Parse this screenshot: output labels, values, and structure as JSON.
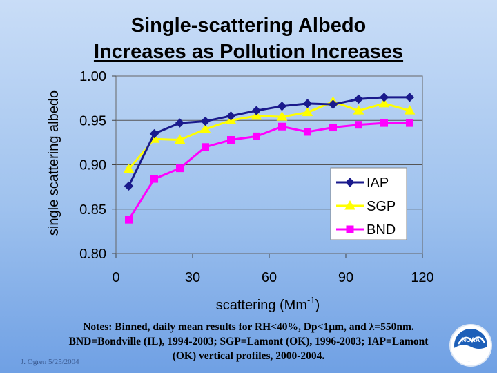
{
  "slide": {
    "title_line1": "Single-scattering Albedo",
    "title_line2": "Increases as Pollution Increases",
    "notes_line1": "Notes:   Binned, daily mean results for RH<40%, Dp<1µm, and λ=550nm.",
    "notes_line2": "BND=Bondville (IL), 1994-2003; SGP=Lamont (OK), 1996-2003; IAP=Lamont",
    "notes_line3": "(OK) vertical profiles, 2000-2004.",
    "credit": "J. Ogren  5/25/2004",
    "logo_text": "NOAA",
    "colors": {
      "iap": "#1a1a8c",
      "sgp": "#ffff00",
      "bnd": "#ff00ff"
    }
  },
  "chart_data": {
    "type": "line",
    "xlabel": "scattering (Mm",
    "xlabel_sup": "-1",
    "xlabel_close": ")",
    "ylabel": "single scattering albedo",
    "xlim": [
      0,
      120
    ],
    "ylim": [
      0.8,
      1.0
    ],
    "x_ticks": [
      0,
      30,
      60,
      90,
      120
    ],
    "x_tick_labels": [
      "0",
      "30",
      "60",
      "90",
      "120"
    ],
    "y_ticks": [
      0.8,
      0.85,
      0.9,
      0.95,
      1.0
    ],
    "y_tick_labels": [
      "0.80",
      "0.85",
      "0.90",
      "0.95",
      "1.00"
    ],
    "grid": "horizontal",
    "legend_position": "bottom-right",
    "series": [
      {
        "name": "IAP",
        "marker": "diamond",
        "color": "#1a1a8c",
        "x": [
          5,
          15,
          25,
          35,
          45,
          55,
          65,
          75,
          85,
          95,
          105,
          115
        ],
        "y": [
          0.876,
          0.935,
          0.947,
          0.949,
          0.955,
          0.961,
          0.966,
          0.969,
          0.968,
          0.974,
          0.976,
          0.976
        ]
      },
      {
        "name": "SGP",
        "marker": "triangle",
        "color": "#ffff00",
        "x": [
          5,
          15,
          25,
          35,
          45,
          55,
          65,
          75,
          85,
          95,
          105,
          115
        ],
        "y": [
          0.895,
          0.929,
          0.928,
          0.94,
          0.95,
          0.955,
          0.954,
          0.959,
          0.971,
          0.961,
          0.969,
          0.961
        ]
      },
      {
        "name": "BND",
        "marker": "square",
        "color": "#ff00ff",
        "x": [
          5,
          15,
          25,
          35,
          45,
          55,
          65,
          75,
          85,
          95,
          105,
          115
        ],
        "y": [
          0.838,
          0.884,
          0.896,
          0.92,
          0.928,
          0.932,
          0.943,
          0.937,
          0.942,
          0.945,
          0.947,
          0.947
        ]
      }
    ]
  }
}
